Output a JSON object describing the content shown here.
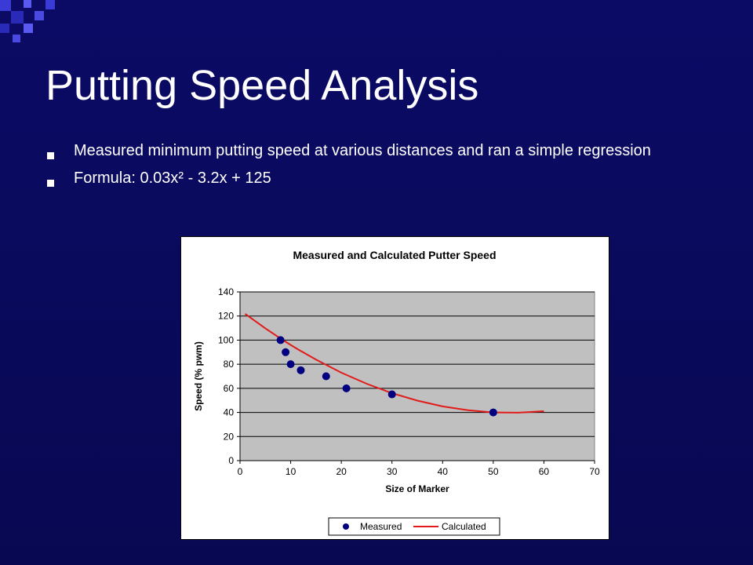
{
  "slide": {
    "title": "Putting Speed Analysis",
    "bullets": [
      "Measured minimum putting speed at various distances and ran a simple regression",
      "Formula:  0.03x² - 3.2x + 125"
    ]
  },
  "colors": {
    "background": "#0a0a5e",
    "plot_area": "#c0c0c0",
    "measured": "#000080",
    "calculated": "#e21a1a"
  },
  "chart_data": {
    "type": "scatter",
    "title": "Measured and Calculated Putter Speed",
    "xlabel": "Size of Marker",
    "ylabel": "Speed (% pwm)",
    "xlim": [
      0,
      70
    ],
    "ylim": [
      0,
      140
    ],
    "x_ticks": [
      "0",
      "10",
      "20",
      "30",
      "40",
      "50",
      "60",
      "70"
    ],
    "y_ticks": [
      "0",
      "20",
      "40",
      "60",
      "80",
      "100",
      "120",
      "140"
    ],
    "grid": "horizontal",
    "legend": "bottom",
    "series": [
      {
        "name": "Measured",
        "type": "scatter",
        "x": [
          8,
          9,
          10,
          12,
          17,
          21,
          30,
          50
        ],
        "y": [
          100,
          90,
          80,
          75,
          70,
          60,
          55,
          40
        ]
      },
      {
        "name": "Calculated",
        "type": "line",
        "x": [
          1,
          5,
          8,
          10,
          12,
          15,
          20,
          25,
          30,
          35,
          40,
          45,
          50,
          55,
          60
        ],
        "y": [
          121.8,
          109.8,
          101.3,
          96.0,
          91.0,
          83.8,
          73.0,
          63.8,
          56.0,
          49.8,
          45.0,
          41.8,
          40.0,
          39.8,
          41.0
        ]
      }
    ]
  }
}
